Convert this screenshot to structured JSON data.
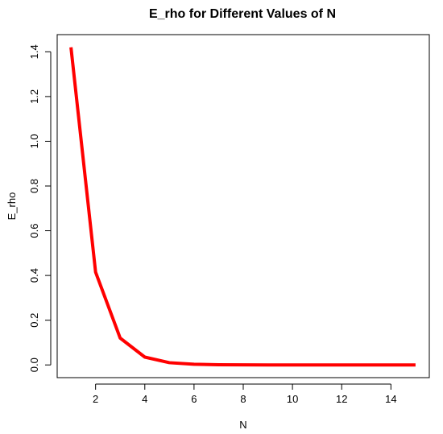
{
  "chart_data": {
    "type": "line",
    "title": "E_rho for Different Values of N",
    "xlabel": "N",
    "ylabel": "E_rho",
    "xlim": [
      0.44,
      15.56
    ],
    "ylim": [
      -0.0568,
      1.4768
    ],
    "xticks": [
      2,
      4,
      6,
      8,
      10,
      12,
      14
    ],
    "yticks": [
      0.0,
      0.2,
      0.4,
      0.6,
      0.8,
      1.0,
      1.2,
      1.4
    ],
    "ytick_labels": [
      "0.0",
      "0.2",
      "0.4",
      "0.6",
      "0.8",
      "1.0",
      "1.2",
      "1.4"
    ],
    "grid": false,
    "series": [
      {
        "color": "#ff0000",
        "x": [
          1,
          2,
          3,
          4,
          5,
          6,
          7,
          8,
          9,
          10,
          11,
          12,
          13,
          14,
          15
        ],
        "y": [
          1.42,
          0.415,
          0.12,
          0.035,
          0.01,
          0.003,
          0.001,
          0.0003,
          0.0001,
          0.0,
          0.0,
          0.0,
          0.0,
          0.0,
          0.0
        ]
      }
    ]
  }
}
